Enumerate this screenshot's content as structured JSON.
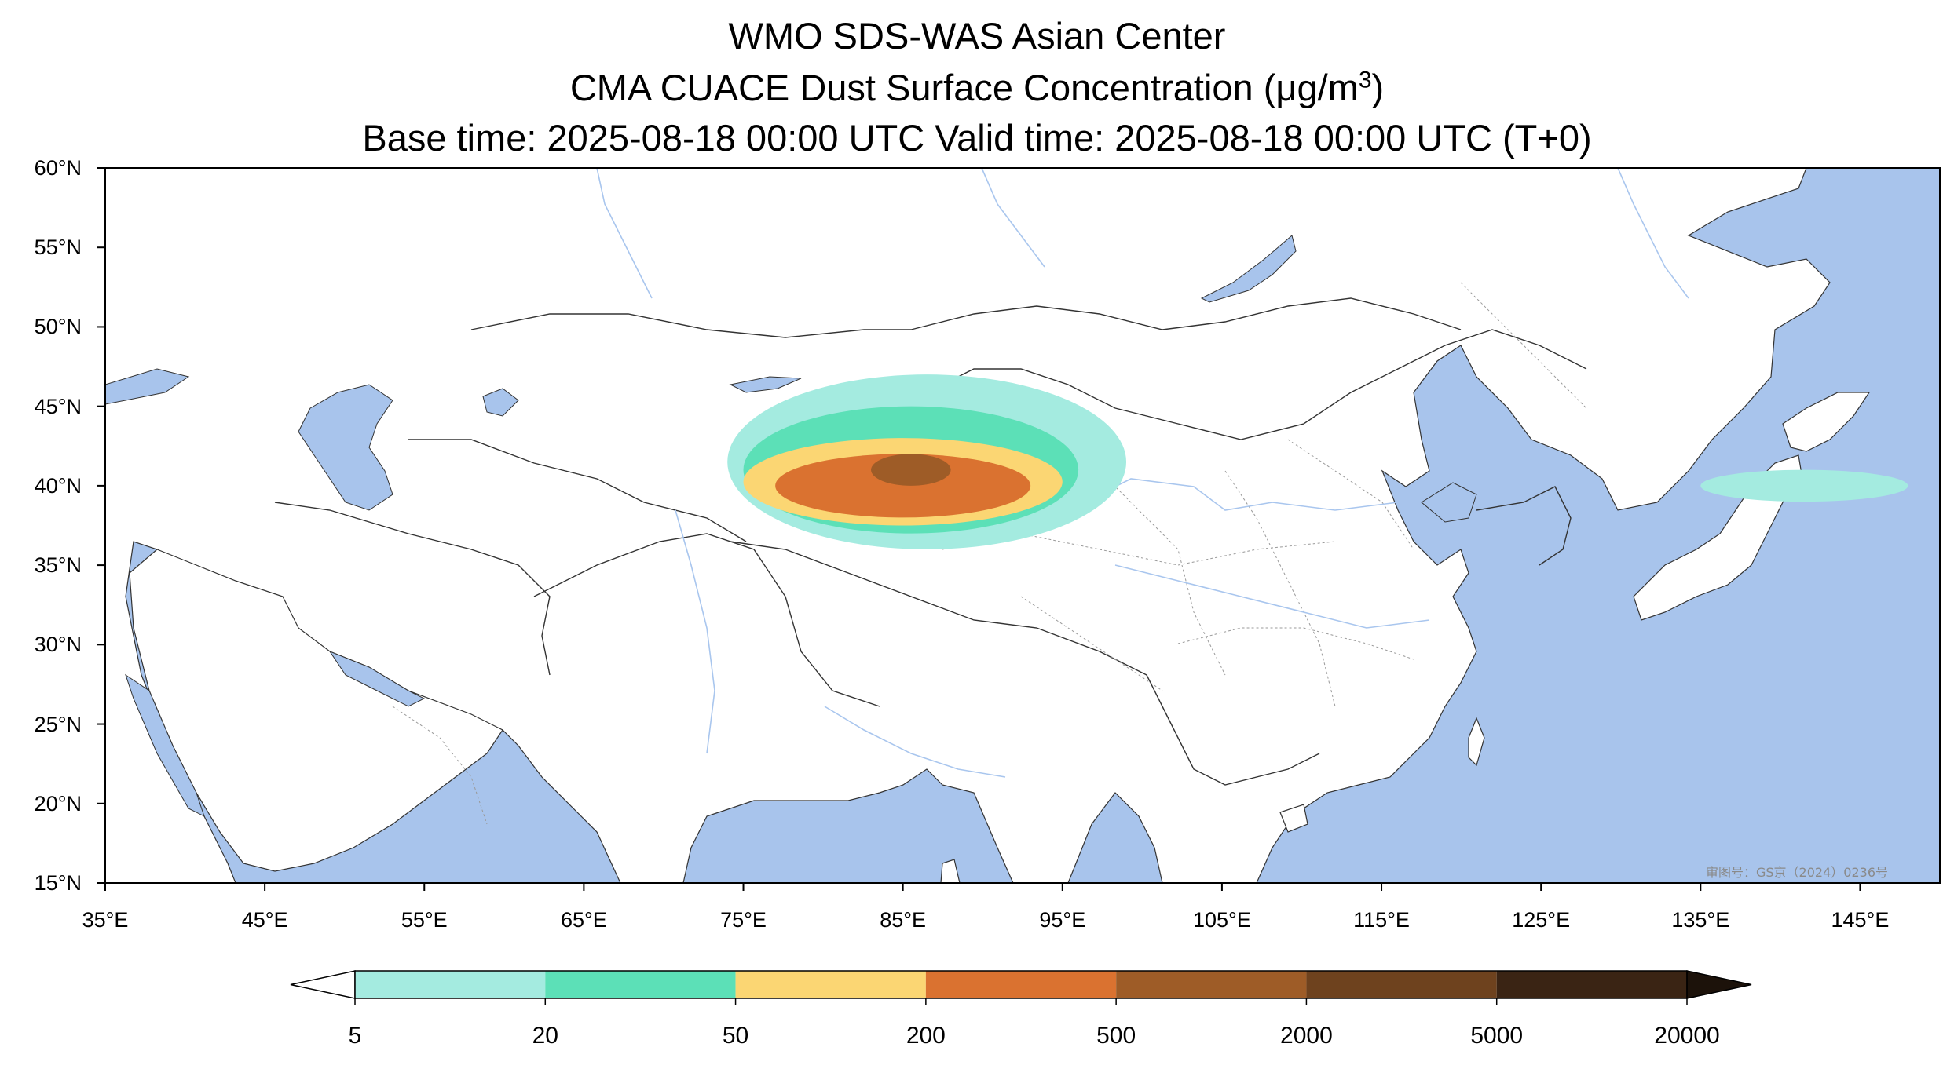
{
  "title": {
    "line1": "WMO SDS-WAS Asian Center",
    "line2_prefix": "CMA CUACE Dust Surface Concentration (μg/m",
    "line2_sup": "3",
    "line2_suffix": ")",
    "line3": "Base time: 2025-08-18 00:00 UTC Valid time: 2025-08-18 00:00 UTC (T+0)"
  },
  "map": {
    "lon_range": [
      35,
      150
    ],
    "lat_range": [
      15,
      60
    ],
    "lon_ticks": [
      35,
      45,
      55,
      65,
      75,
      85,
      95,
      105,
      115,
      125,
      135,
      145
    ],
    "lat_ticks": [
      15,
      20,
      25,
      30,
      35,
      40,
      45,
      50,
      55,
      60
    ],
    "lon_tick_labels": [
      "35°E",
      "45°E",
      "55°E",
      "65°E",
      "75°E",
      "85°E",
      "95°E",
      "105°E",
      "115°E",
      "125°E",
      "135°E",
      "145°E"
    ],
    "lat_tick_labels": [
      "15°N",
      "20°N",
      "25°N",
      "30°N",
      "35°N",
      "40°N",
      "45°N",
      "50°N",
      "55°N",
      "60°N"
    ],
    "watermark": "审图号：GS京（2024）0236号",
    "colors": {
      "ocean": "#a8c4ec",
      "land": "#ffffff",
      "border": "#333333",
      "river": "#a9c6ee"
    }
  },
  "colorbar": {
    "levels": [
      5,
      20,
      50,
      200,
      500,
      2000,
      5000,
      20000
    ],
    "labels": [
      "5",
      "20",
      "50",
      "200",
      "500",
      "2000",
      "5000",
      "20000"
    ],
    "colors": [
      "#a4ebe0",
      "#5ce0b7",
      "#fbd673",
      "#da7230",
      "#9e5c27",
      "#6e421e",
      "#3a2414"
    ],
    "under_color": "#ffffff",
    "over_color": "#1c120a",
    "extend": "both"
  },
  "chart_data": {
    "type": "heatmap",
    "title": "CMA CUACE Dust Surface Concentration (μg/m3)",
    "xlabel": "",
    "ylabel": "",
    "xlim": [
      35,
      150
    ],
    "ylim": [
      15,
      60
    ],
    "value_bins": [
      5,
      20,
      50,
      200,
      500,
      2000,
      5000,
      20000
    ],
    "dust_regions": [
      {
        "level": 5,
        "lon": [
          74,
          99
        ],
        "lat": [
          36,
          47
        ]
      },
      {
        "level": 5,
        "lon": [
          135,
          148
        ],
        "lat": [
          39,
          41
        ]
      },
      {
        "level": 20,
        "lon": [
          75,
          96
        ],
        "lat": [
          37,
          45
        ]
      },
      {
        "level": 50,
        "lon": [
          75,
          95
        ],
        "lat": [
          37.5,
          43
        ]
      },
      {
        "level": 200,
        "lon": [
          77,
          93
        ],
        "lat": [
          38,
          42
        ]
      },
      {
        "level": 500,
        "lon": [
          83,
          88
        ],
        "lat": [
          40,
          42
        ]
      }
    ]
  }
}
